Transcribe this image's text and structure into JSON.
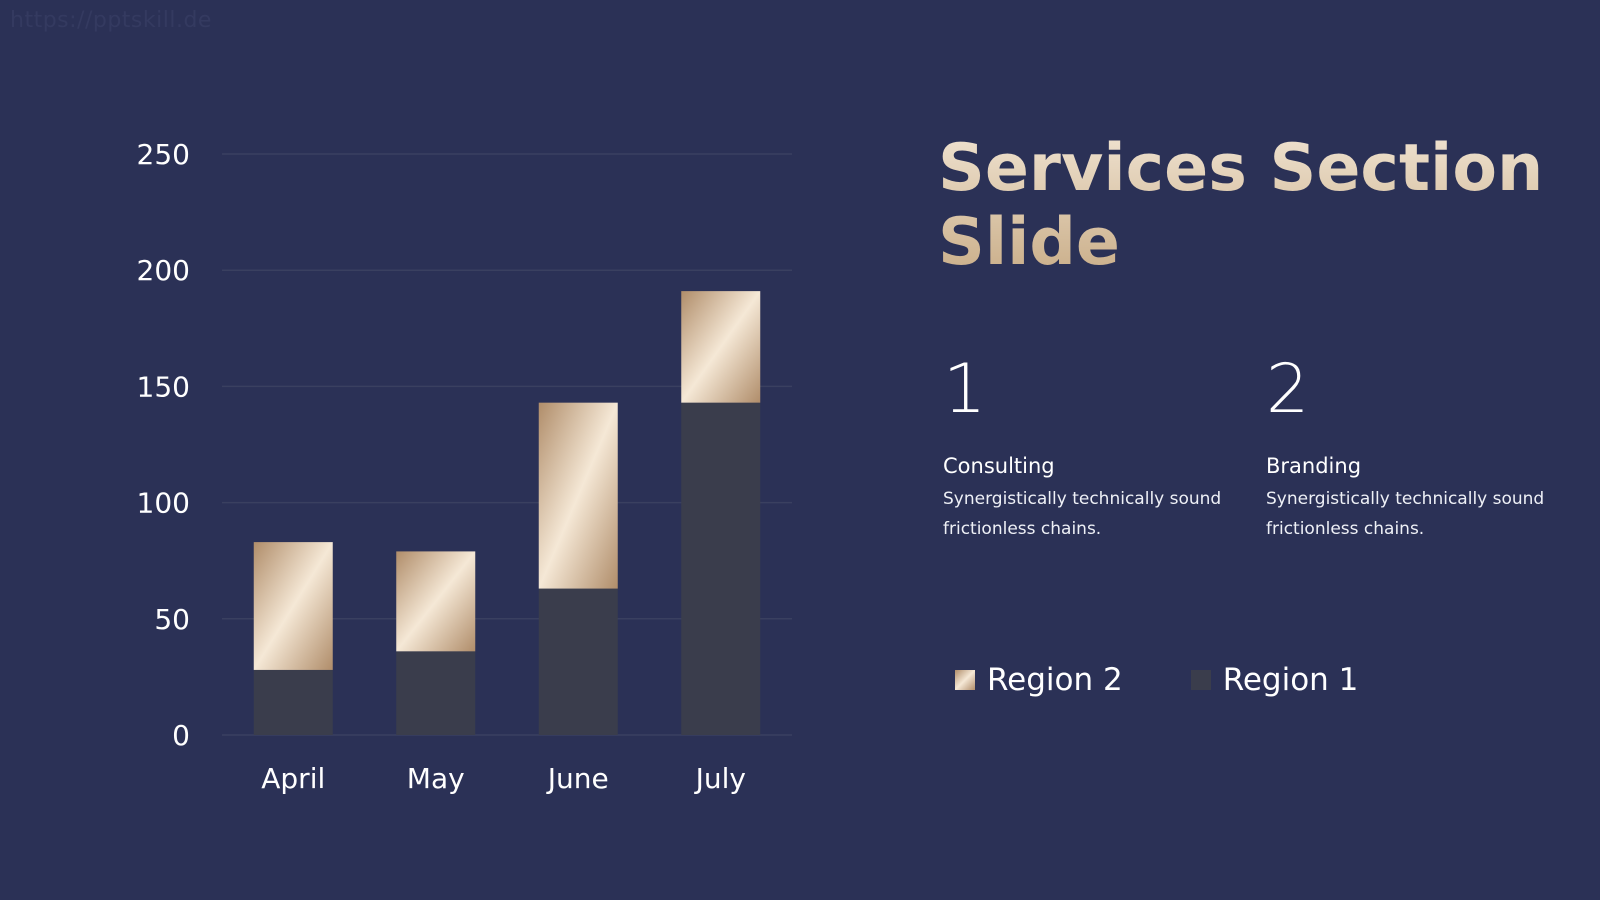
{
  "watermark": "https://pptskill.de",
  "slide": {
    "title": "Services Section Slide",
    "services": [
      {
        "number": "1",
        "name": "Consulting",
        "description": "Synergistically technically sound frictionless chains."
      },
      {
        "number": "2",
        "name": "Branding",
        "description": "Synergistically technically sound frictionless chains."
      }
    ]
  },
  "colors": {
    "background": "#2b3156",
    "region1": "#3a3d4c",
    "region2_light": "#f5e8d6",
    "region2_dark": "#b08d6a",
    "gridline": "#3a4060"
  },
  "chart_data": {
    "type": "bar",
    "stacked": true,
    "categories": [
      "April",
      "May",
      "June",
      "July"
    ],
    "series": [
      {
        "name": "Region 1",
        "values": [
          28,
          36,
          63,
          143
        ]
      },
      {
        "name": "Region 2",
        "values": [
          55,
          43,
          80,
          48
        ]
      }
    ],
    "ylim": [
      0,
      250
    ],
    "yticks": [
      "0",
      "50",
      "100",
      "150",
      "200",
      "250"
    ],
    "grid": true,
    "legend": {
      "placement": "right",
      "entries": [
        "Region 2",
        "Region 1"
      ]
    }
  }
}
